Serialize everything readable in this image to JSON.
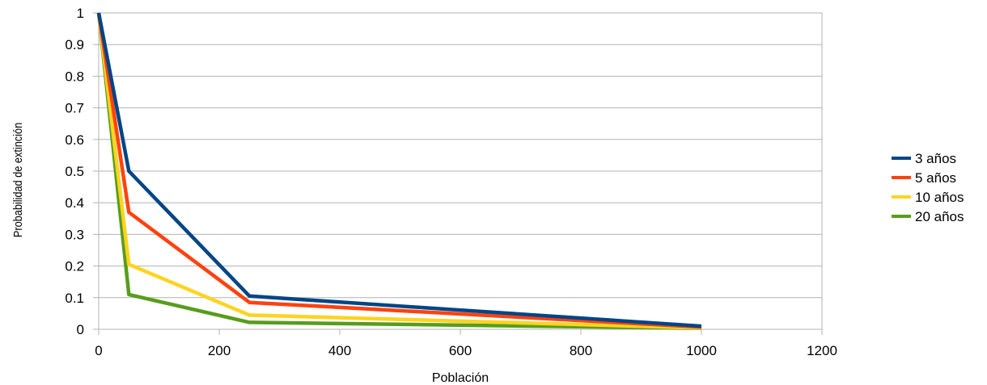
{
  "chart_data": {
    "type": "line",
    "xlabel": "Población",
    "ylabel": "Probabilidad de extinción",
    "xlim": [
      0,
      1200
    ],
    "ylim": [
      0,
      1
    ],
    "xticks": [
      "0",
      "200",
      "400",
      "600",
      "800",
      "1000",
      "1200"
    ],
    "yticks": [
      "0",
      "0.1",
      "0.2",
      "0.3",
      "0.4",
      "0.5",
      "0.6",
      "0.7",
      "0.8",
      "0.9",
      "1"
    ],
    "grid": "horizontal",
    "legend_position": "right",
    "x": [
      0,
      50,
      250,
      1000
    ],
    "series": [
      {
        "name": "3 años",
        "color": "#004586",
        "values": [
          1.0,
          0.5,
          0.105,
          0.01
        ]
      },
      {
        "name": "5 años",
        "color": "#ff420e",
        "values": [
          1.0,
          0.37,
          0.085,
          0.007
        ]
      },
      {
        "name": "10 años",
        "color": "#ffd320",
        "values": [
          1.0,
          0.205,
          0.045,
          0.004
        ]
      },
      {
        "name": "20 años",
        "color": "#579d1c",
        "values": [
          1.0,
          0.11,
          0.022,
          0.003
        ]
      }
    ]
  }
}
